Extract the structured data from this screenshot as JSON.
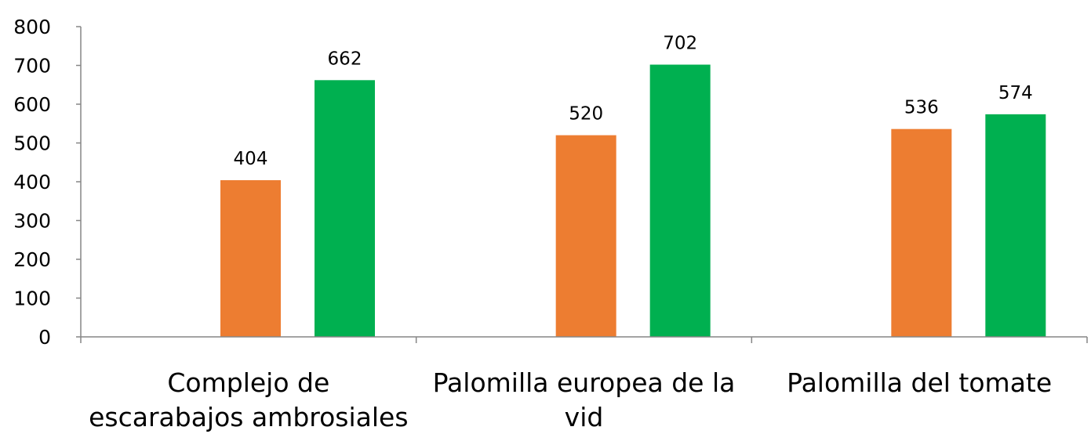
{
  "chart_data": {
    "type": "bar",
    "title": "",
    "xlabel": "",
    "ylabel": "",
    "ylim": [
      0,
      800
    ],
    "yticks": [
      "0",
      "100",
      "200",
      "300",
      "400",
      "500",
      "600",
      "700",
      "800"
    ],
    "grid": false,
    "legend": "none",
    "categories": [
      [
        "Complejo de",
        "escarabajos ambrosiales"
      ],
      [
        "Palomilla europea de la",
        "vid"
      ],
      [
        "Palomilla del tomate"
      ]
    ],
    "series": [
      {
        "color": "#ED7D31",
        "values": [
          404,
          520,
          536
        ]
      },
      {
        "color": "#00B050",
        "values": [
          662,
          702,
          574
        ]
      }
    ]
  }
}
